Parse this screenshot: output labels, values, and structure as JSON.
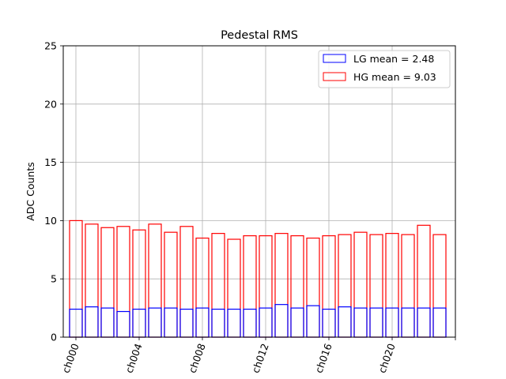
{
  "chart_data": {
    "type": "bar",
    "title": "Pedestal RMS",
    "xlabel": "",
    "ylabel": "ADC Counts",
    "ylim": [
      0,
      25
    ],
    "yticks": [
      0,
      5,
      10,
      15,
      20,
      25
    ],
    "grid": true,
    "legend_position": "top-right",
    "categories": [
      "ch000",
      "ch001",
      "ch002",
      "ch003",
      "ch004",
      "ch005",
      "ch006",
      "ch007",
      "ch008",
      "ch009",
      "ch010",
      "ch011",
      "ch012",
      "ch013",
      "ch014",
      "ch015",
      "ch016",
      "ch017",
      "ch018",
      "ch019",
      "ch020",
      "ch021",
      "ch022",
      "ch023"
    ],
    "tick_labels": [
      "ch000",
      "ch004",
      "ch008",
      "ch012",
      "ch016",
      "ch020",
      ""
    ],
    "series": [
      {
        "name": "HG mean = 9.03",
        "color": "#ff0000",
        "values": [
          10.0,
          9.7,
          9.4,
          9.5,
          9.2,
          9.7,
          9.0,
          9.5,
          8.5,
          8.9,
          8.4,
          8.7,
          8.7,
          8.9,
          8.7,
          8.5,
          8.7,
          8.8,
          9.0,
          8.8,
          8.9,
          8.8,
          9.6,
          8.8
        ]
      },
      {
        "name": "LG mean = 2.48",
        "color": "#0000ff",
        "values": [
          2.4,
          2.6,
          2.5,
          2.2,
          2.4,
          2.5,
          2.5,
          2.4,
          2.5,
          2.4,
          2.4,
          2.4,
          2.5,
          2.8,
          2.5,
          2.7,
          2.4,
          2.6,
          2.5,
          2.5,
          2.5,
          2.5,
          2.5,
          2.5
        ]
      }
    ],
    "legend": [
      "LG mean = 2.48",
      "HG mean = 9.03"
    ]
  }
}
